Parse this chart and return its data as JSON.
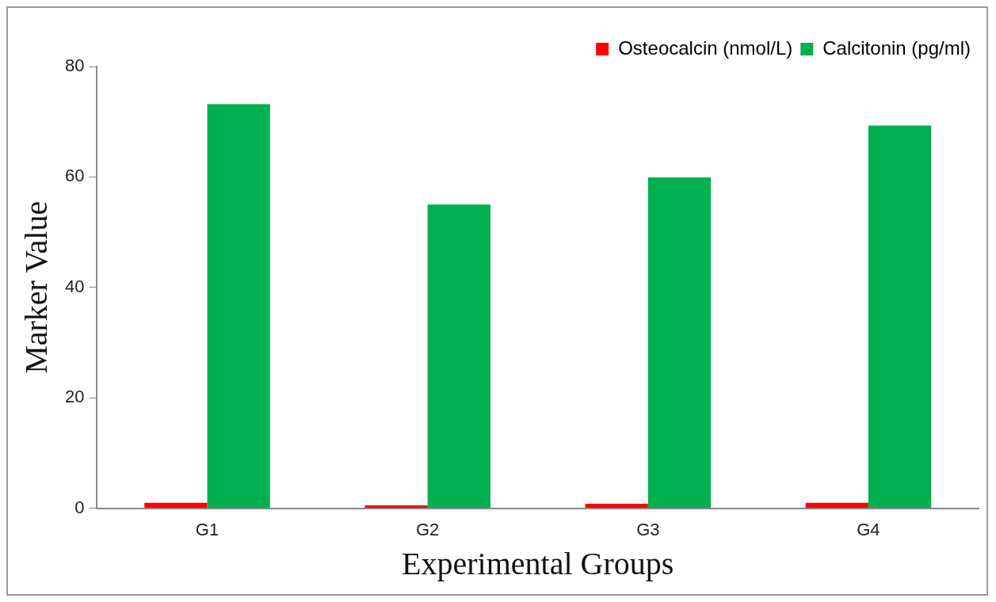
{
  "chart_data": {
    "type": "bar",
    "xlabel": "Experimental Groups",
    "ylabel": "Marker Value",
    "categories": [
      "G1",
      "G2",
      "G3",
      "G4"
    ],
    "series": [
      {
        "name": "Osteocalcin (nmol/L)",
        "color": "#ff0000",
        "values": [
          1.0,
          0.5,
          0.8,
          1.0
        ]
      },
      {
        "name": "Calcitonin (pg/ml)",
        "color": "#00b050",
        "values": [
          73.2,
          55.0,
          59.9,
          69.3
        ]
      }
    ],
    "ylim": [
      0,
      80
    ],
    "yticks": [
      0,
      20,
      40,
      60,
      80
    ],
    "grid": false,
    "legend": "top right"
  }
}
